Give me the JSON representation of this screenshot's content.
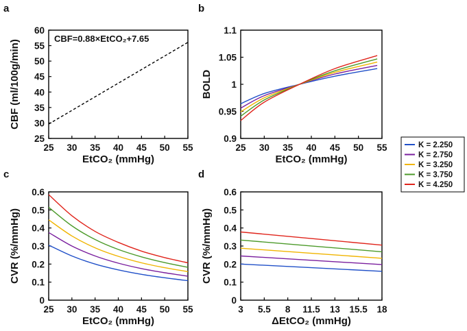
{
  "chart_data": [
    {
      "panel": "a",
      "type": "line",
      "xlabel": "EtCO₂ (mmHg)",
      "ylabel": "CBF (ml/100g/min)",
      "xlim": [
        25,
        55
      ],
      "ylim": [
        25,
        60
      ],
      "xticks": [
        "25",
        "30",
        "35",
        "40",
        "45",
        "50",
        "55"
      ],
      "yticks": [
        "25",
        "30",
        "35",
        "40",
        "45",
        "50",
        "55",
        "60"
      ],
      "annotation": "CBF=0.88×EtCO₂+7.65",
      "series": [
        {
          "color": "#000000",
          "dashed": true,
          "x": [
            25,
            55
          ],
          "y": [
            29.65,
            56.05
          ]
        }
      ]
    },
    {
      "panel": "b",
      "type": "line",
      "xlabel": "EtCO₂ (mmHg)",
      "ylabel": "BOLD",
      "xlim": [
        25,
        55
      ],
      "ylim": [
        0.9,
        1.1
      ],
      "xticks": [
        "25",
        "30",
        "35",
        "40",
        "45",
        "50",
        "55"
      ],
      "yticks": [
        "0.9",
        "0.95",
        "1",
        "1.05",
        "1.1"
      ],
      "series": [
        {
          "name": "K = 2.250",
          "color": "#1f4fc8",
          "x": [
            25,
            30,
            37.5,
            45,
            54
          ],
          "y": [
            0.964,
            0.983,
            1.0,
            1.015,
            1.029
          ]
        },
        {
          "name": "K = 2.750",
          "color": "#7a1f9e",
          "x": [
            25,
            30,
            37.5,
            45,
            54
          ],
          "y": [
            0.956,
            0.979,
            1.0,
            1.019,
            1.035
          ]
        },
        {
          "name": "K = 3.250",
          "color": "#f0b400",
          "x": [
            25,
            30,
            37.5,
            45,
            54
          ],
          "y": [
            0.949,
            0.975,
            1.0,
            1.022,
            1.041
          ]
        },
        {
          "name": "K = 3.750",
          "color": "#4c9a2a",
          "x": [
            25,
            30,
            37.5,
            45,
            54
          ],
          "y": [
            0.941,
            0.971,
            1.0,
            1.025,
            1.047
          ]
        },
        {
          "name": "K = 4.250",
          "color": "#e0241b",
          "x": [
            25,
            30,
            37.5,
            45,
            54
          ],
          "y": [
            0.933,
            0.967,
            1.0,
            1.029,
            1.053
          ]
        }
      ]
    },
    {
      "panel": "c",
      "type": "line",
      "xlabel": "EtCO₂ (mmHg)",
      "ylabel": "CVR (%/mmHg)",
      "xlim": [
        25,
        55
      ],
      "ylim": [
        0,
        0.6
      ],
      "xticks": [
        "25",
        "30",
        "35",
        "40",
        "45",
        "50",
        "55"
      ],
      "yticks": [
        "0",
        "0.1",
        "0.2",
        "0.3",
        "0.4",
        "0.5",
        "0.6"
      ],
      "series": [
        {
          "name": "K = 2.250",
          "color": "#1f4fc8",
          "x": [
            25,
            30,
            35,
            40,
            45,
            50,
            55
          ],
          "y": [
            0.305,
            0.245,
            0.2,
            0.168,
            0.143,
            0.124,
            0.108
          ]
        },
        {
          "name": "K = 2.750",
          "color": "#7a1f9e",
          "x": [
            25,
            30,
            35,
            40,
            45,
            50,
            55
          ],
          "y": [
            0.375,
            0.3,
            0.245,
            0.205,
            0.175,
            0.152,
            0.133
          ]
        },
        {
          "name": "K = 3.250",
          "color": "#f0b400",
          "x": [
            25,
            30,
            35,
            40,
            45,
            50,
            55
          ],
          "y": [
            0.445,
            0.356,
            0.29,
            0.243,
            0.207,
            0.18,
            0.158
          ]
        },
        {
          "name": "K = 3.750",
          "color": "#4c9a2a",
          "x": [
            25,
            30,
            35,
            40,
            45,
            50,
            55
          ],
          "y": [
            0.515,
            0.412,
            0.336,
            0.281,
            0.24,
            0.208,
            0.182
          ]
        },
        {
          "name": "K = 4.250",
          "color": "#e0241b",
          "x": [
            25,
            30,
            35,
            40,
            45,
            50,
            55
          ],
          "y": [
            0.585,
            0.468,
            0.381,
            0.32,
            0.272,
            0.236,
            0.207
          ]
        }
      ]
    },
    {
      "panel": "d",
      "type": "line",
      "xlabel": "ΔEtCO₂ (mmHg)",
      "ylabel": "CVR (%/mmHg)",
      "xlim": [
        3,
        18
      ],
      "ylim": [
        0,
        0.6
      ],
      "xticks": [
        "3",
        "5.5",
        "8",
        "11.5",
        "13",
        "15.5",
        "18"
      ],
      "yticks": [
        "0",
        "0.1",
        "0.2",
        "0.3",
        "0.4",
        "0.5",
        "0.6"
      ],
      "series": [
        {
          "name": "K = 2.250",
          "color": "#1f4fc8",
          "x": [
            3,
            18
          ],
          "y": [
            0.2,
            0.16
          ]
        },
        {
          "name": "K = 2.750",
          "color": "#7a1f9e",
          "x": [
            3,
            18
          ],
          "y": [
            0.245,
            0.197
          ]
        },
        {
          "name": "K = 3.250",
          "color": "#f0b400",
          "x": [
            3,
            18
          ],
          "y": [
            0.288,
            0.232
          ]
        },
        {
          "name": "K = 3.750",
          "color": "#4c9a2a",
          "x": [
            3,
            18
          ],
          "y": [
            0.333,
            0.268
          ]
        },
        {
          "name": "K = 4.250",
          "color": "#e0241b",
          "x": [
            3,
            18
          ],
          "y": [
            0.378,
            0.305
          ]
        }
      ]
    }
  ],
  "legend": {
    "placement": "right",
    "entries": [
      {
        "label": "K = 2.250",
        "color": "#1f4fc8"
      },
      {
        "label": "K = 2.750",
        "color": "#7a1f9e"
      },
      {
        "label": "K = 3.250",
        "color": "#f0b400"
      },
      {
        "label": "K = 3.750",
        "color": "#4c9a2a"
      },
      {
        "label": "K = 4.250",
        "color": "#e0241b"
      }
    ]
  }
}
